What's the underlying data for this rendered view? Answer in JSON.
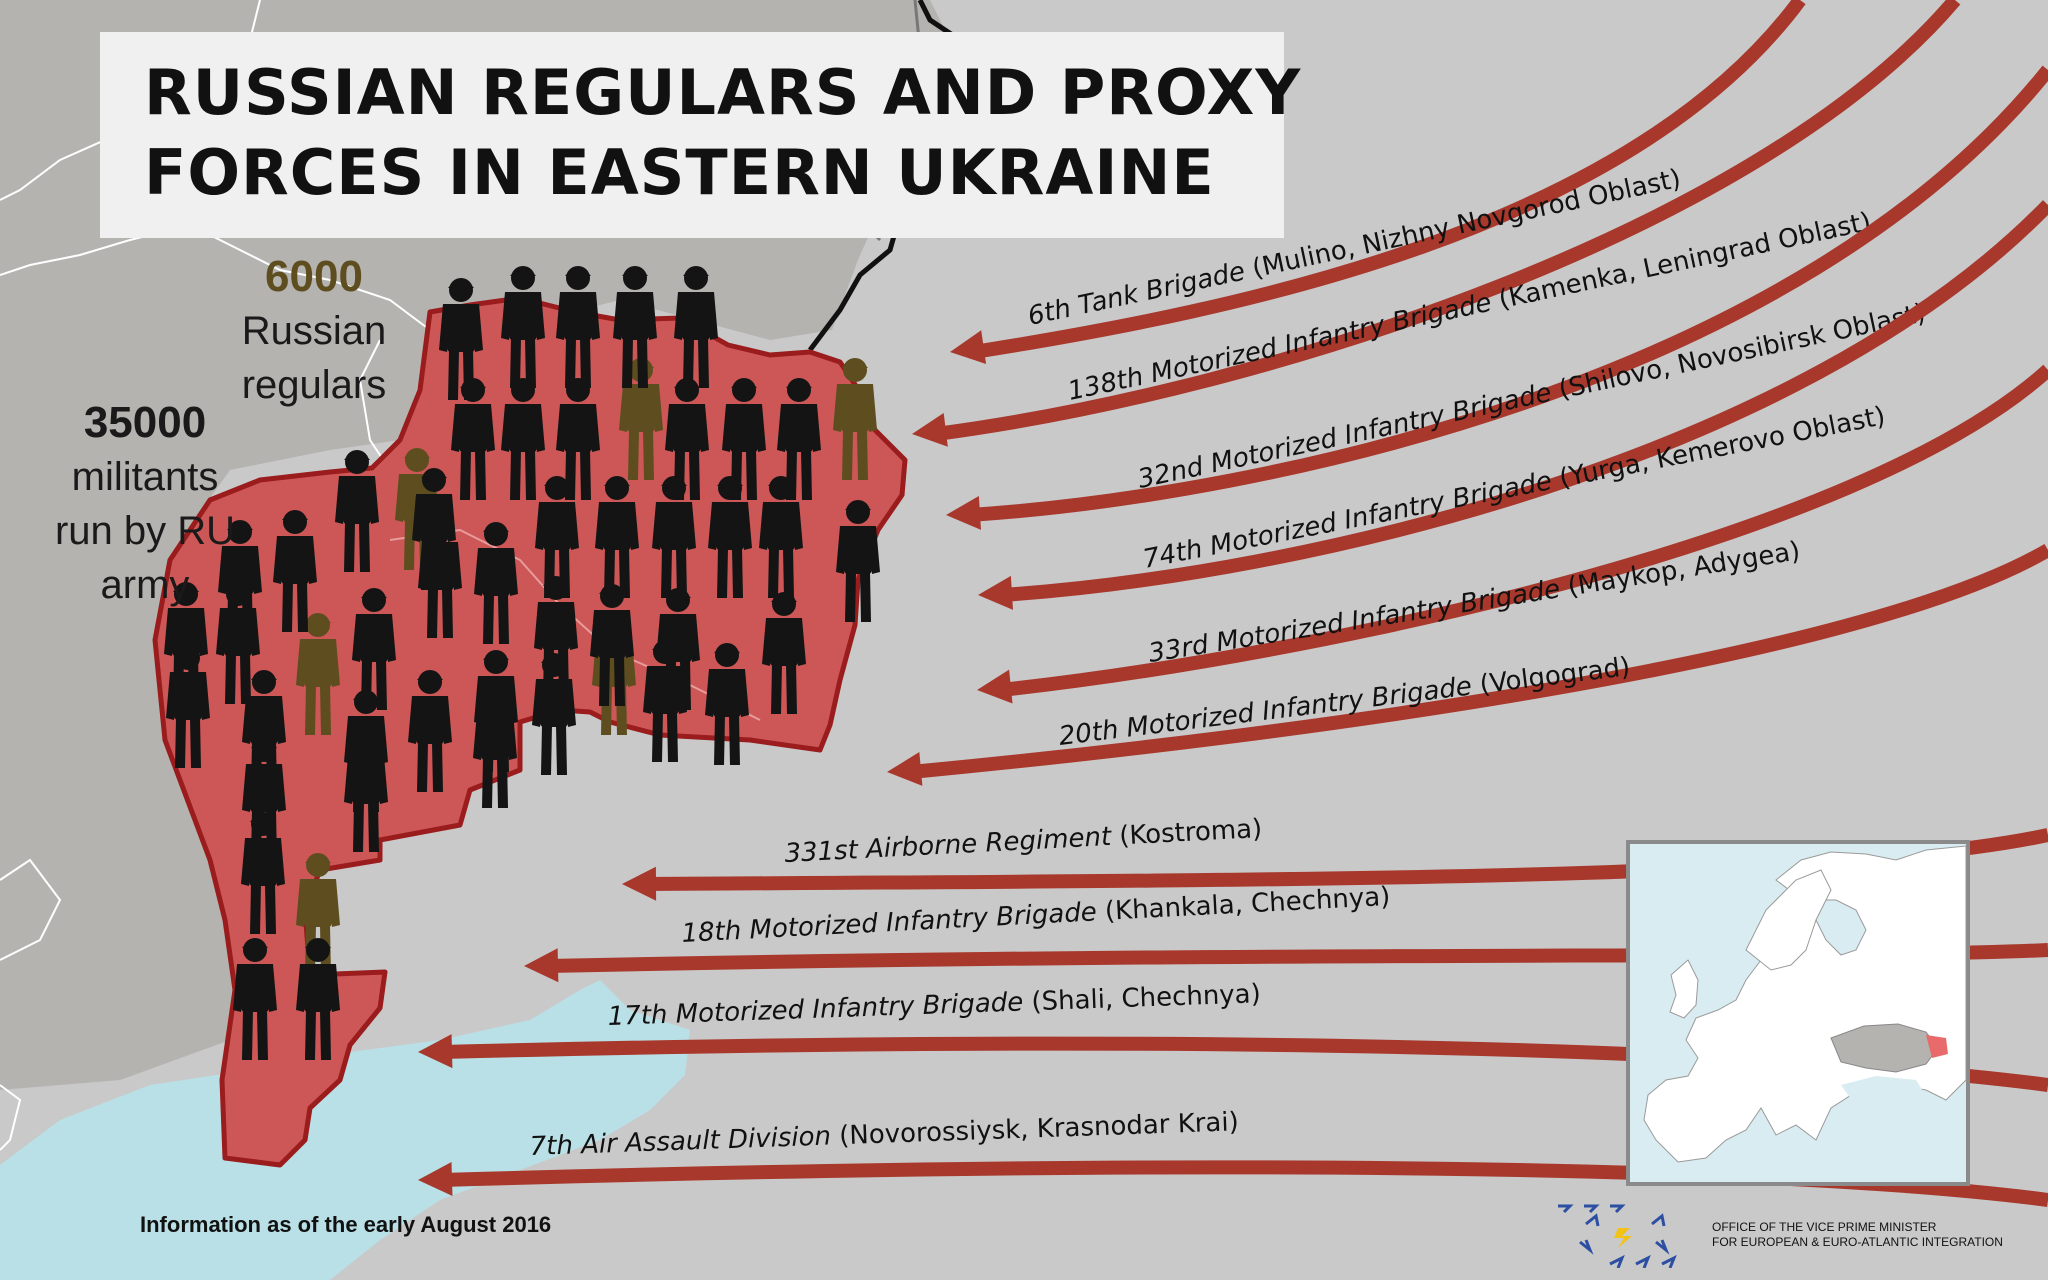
{
  "title": {
    "line1": "RUSSIAN REGULARS AND PROXY",
    "line2": "FORCES IN EASTERN UKRAINE"
  },
  "regulars": {
    "count": "6000",
    "label": "Russian\nregulars"
  },
  "militants": {
    "count": "35000",
    "label": "militants\nrun by RU\narmy"
  },
  "units": [
    {
      "name": "6th Tank Brigade",
      "origin": "(Mulino, Nizhny Novgorod Oblast)"
    },
    {
      "name": "138th Motorized Infantry Brigade",
      "origin": "(Kamenka, Leningrad Oblast)"
    },
    {
      "name": "32nd Motorized Infantry Brigade",
      "origin": "(Shilovo, Novosibirsk Oblast)"
    },
    {
      "name": "74th Motorized Infantry Brigade",
      "origin": "(Yurga, Kemerovo Oblast)"
    },
    {
      "name": "33rd Motorized Infantry Brigade",
      "origin": "(Maykop, Adygea)"
    },
    {
      "name": "20th Motorized Infantry Brigade",
      "origin": "(Volgograd)"
    },
    {
      "name": "331st Airborne Regiment",
      "origin": "(Kostroma)"
    },
    {
      "name": "18th Motorized Infantry Brigade",
      "origin": "(Khankala, Chechnya)"
    },
    {
      "name": "17th Motorized Infantry Brigade",
      "origin": "(Shali, Chechnya)"
    },
    {
      "name": "7th Air Assault Division",
      "origin": "(Novorossiysk, Krasnodar Krai)"
    }
  ],
  "footnote": "Information as of the early August 2016",
  "office": "OFFICE OF THE VICE PRIME MINISTER\nFOR EUROPEAN & EURO-ATLANTIC INTEGRATION",
  "figures": {
    "regular_count": 10,
    "militant_count": 44
  },
  "colors": {
    "background": "#c9c9c9",
    "arrow": "#a8382c",
    "occupied_area": "#cd5757",
    "regular_figure": "#5e4e1f",
    "militant_figure": "#141414",
    "sea": "#b9e0e6"
  }
}
